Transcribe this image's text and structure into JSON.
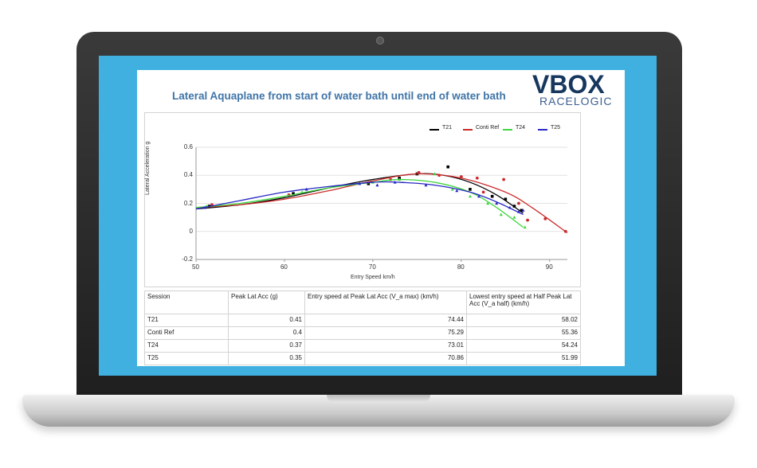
{
  "chart_data": {
    "type": "scatter",
    "title": "Lateral Aquaplane from start of water bath until end of water bath",
    "xlabel": "Entry Speed km/h",
    "ylabel": "Lateral Acceleration g",
    "xlim": [
      50,
      92
    ],
    "ylim": [
      -0.2,
      0.6
    ],
    "x_ticks": [
      50,
      60,
      70,
      80,
      90
    ],
    "y_ticks": [
      -0.2,
      0,
      0.2,
      0.4,
      0.6
    ],
    "grid": true,
    "legend_position": "top-right",
    "series": [
      {
        "name": "T21",
        "color": "#000000",
        "marker": "square",
        "points": [
          [
            51.5,
            0.18
          ],
          [
            61,
            0.27
          ],
          [
            69.5,
            0.34
          ],
          [
            73,
            0.38
          ],
          [
            75,
            0.41
          ],
          [
            78.5,
            0.46
          ],
          [
            81,
            0.3
          ],
          [
            83.5,
            0.25
          ],
          [
            85,
            0.23
          ],
          [
            86,
            0.18
          ],
          [
            86.8,
            0.15
          ]
        ],
        "trend": [
          [
            50,
            0.16
          ],
          [
            55,
            0.19
          ],
          [
            60,
            0.24
          ],
          [
            65,
            0.31
          ],
          [
            70,
            0.37
          ],
          [
            75,
            0.41
          ],
          [
            78,
            0.4
          ],
          [
            81,
            0.35
          ],
          [
            84,
            0.26
          ],
          [
            87,
            0.13
          ]
        ]
      },
      {
        "name": "Conti Ref",
        "color": "#cc2a2a",
        "marker": "circle",
        "points": [
          [
            51.8,
            0.19
          ],
          [
            60.5,
            0.26
          ],
          [
            72,
            0.37
          ],
          [
            75.2,
            0.42
          ],
          [
            77.5,
            0.4
          ],
          [
            80,
            0.39
          ],
          [
            81.8,
            0.38
          ],
          [
            82.5,
            0.28
          ],
          [
            84.8,
            0.37
          ],
          [
            86.5,
            0.2
          ],
          [
            87.5,
            0.08
          ],
          [
            89.5,
            0.09
          ],
          [
            91.8,
            0.0
          ]
        ],
        "trend": [
          [
            50,
            0.17
          ],
          [
            55,
            0.19
          ],
          [
            60,
            0.23
          ],
          [
            65,
            0.29
          ],
          [
            70,
            0.36
          ],
          [
            75,
            0.41
          ],
          [
            80,
            0.38
          ],
          [
            85,
            0.28
          ],
          [
            88,
            0.17
          ],
          [
            92,
            -0.01
          ]
        ]
      },
      {
        "name": "T24",
        "color": "#3fd63f",
        "marker": "triangle",
        "points": [
          [
            51.2,
            0.18
          ],
          [
            62,
            0.28
          ],
          [
            70,
            0.35
          ],
          [
            73,
            0.37
          ],
          [
            77,
            0.41
          ],
          [
            79,
            0.3
          ],
          [
            81,
            0.25
          ],
          [
            83,
            0.2
          ],
          [
            84.5,
            0.12
          ],
          [
            86,
            0.1
          ],
          [
            87.2,
            0.03
          ]
        ],
        "trend": [
          [
            50,
            0.17
          ],
          [
            55,
            0.2
          ],
          [
            60,
            0.25
          ],
          [
            65,
            0.31
          ],
          [
            70,
            0.35
          ],
          [
            73,
            0.37
          ],
          [
            77,
            0.35
          ],
          [
            81,
            0.28
          ],
          [
            84,
            0.17
          ],
          [
            87,
            0.03
          ]
        ]
      },
      {
        "name": "T25",
        "color": "#2727c4",
        "marker": "triangle",
        "points": [
          [
            51,
            0.17
          ],
          [
            62.5,
            0.3
          ],
          [
            68.5,
            0.34
          ],
          [
            70.5,
            0.33
          ],
          [
            72.5,
            0.35
          ],
          [
            76,
            0.33
          ],
          [
            79.5,
            0.29
          ],
          [
            82,
            0.25
          ],
          [
            84,
            0.2
          ],
          [
            85.5,
            0.17
          ],
          [
            86.5,
            0.14
          ],
          [
            87,
            0.15
          ]
        ],
        "trend": [
          [
            50,
            0.16
          ],
          [
            55,
            0.22
          ],
          [
            60,
            0.28
          ],
          [
            65,
            0.32
          ],
          [
            70,
            0.35
          ],
          [
            73,
            0.35
          ],
          [
            77,
            0.33
          ],
          [
            81,
            0.28
          ],
          [
            84,
            0.21
          ],
          [
            87,
            0.12
          ]
        ]
      }
    ]
  },
  "table": {
    "headers": [
      "Session",
      "Peak Lat Acc (g)",
      "Entry speed at Peak Lat Acc (V_a max) (km/h)",
      "Lowest entry speed at Half Peak Lat Acc (V_a half) (km/h)"
    ],
    "rows": [
      [
        "T21",
        "0.41",
        "74.44",
        "58.02"
      ],
      [
        "Conti Ref",
        "0.4",
        "75.29",
        "55.36"
      ],
      [
        "T24",
        "0.37",
        "73.01",
        "54.24"
      ],
      [
        "T25",
        "0.35",
        "70.86",
        "51.99"
      ]
    ]
  },
  "logo": {
    "main": "VBOX",
    "sub": "RACELOGIC"
  }
}
